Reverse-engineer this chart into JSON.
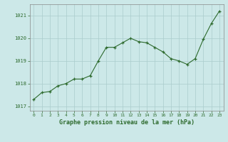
{
  "x": [
    0,
    1,
    2,
    3,
    4,
    5,
    6,
    7,
    8,
    9,
    10,
    11,
    12,
    13,
    14,
    15,
    16,
    17,
    18,
    19,
    20,
    21,
    22,
    23
  ],
  "y": [
    1017.3,
    1017.6,
    1017.65,
    1017.9,
    1018.0,
    1018.2,
    1018.2,
    1018.35,
    1019.0,
    1019.6,
    1019.6,
    1019.8,
    1020.0,
    1019.85,
    1019.8,
    1019.6,
    1019.4,
    1019.1,
    1019.0,
    1018.85,
    1019.1,
    1019.95,
    1020.65,
    1021.2
  ],
  "line_color": "#2d6a2d",
  "marker_color": "#2d6a2d",
  "bg_color": "#cce8e8",
  "grid_color": "#aacccc",
  "axis_label_color": "#2d6a2d",
  "tick_label_color": "#2d6a2d",
  "xlabel": "Graphe pression niveau de la mer (hPa)",
  "ylim": [
    1016.8,
    1021.5
  ],
  "yticks": [
    1017,
    1018,
    1019,
    1020,
    1021
  ],
  "xticks": [
    0,
    1,
    2,
    3,
    4,
    5,
    6,
    7,
    8,
    9,
    10,
    11,
    12,
    13,
    14,
    15,
    16,
    17,
    18,
    19,
    20,
    21,
    22,
    23
  ],
  "spine_color": "#888888"
}
